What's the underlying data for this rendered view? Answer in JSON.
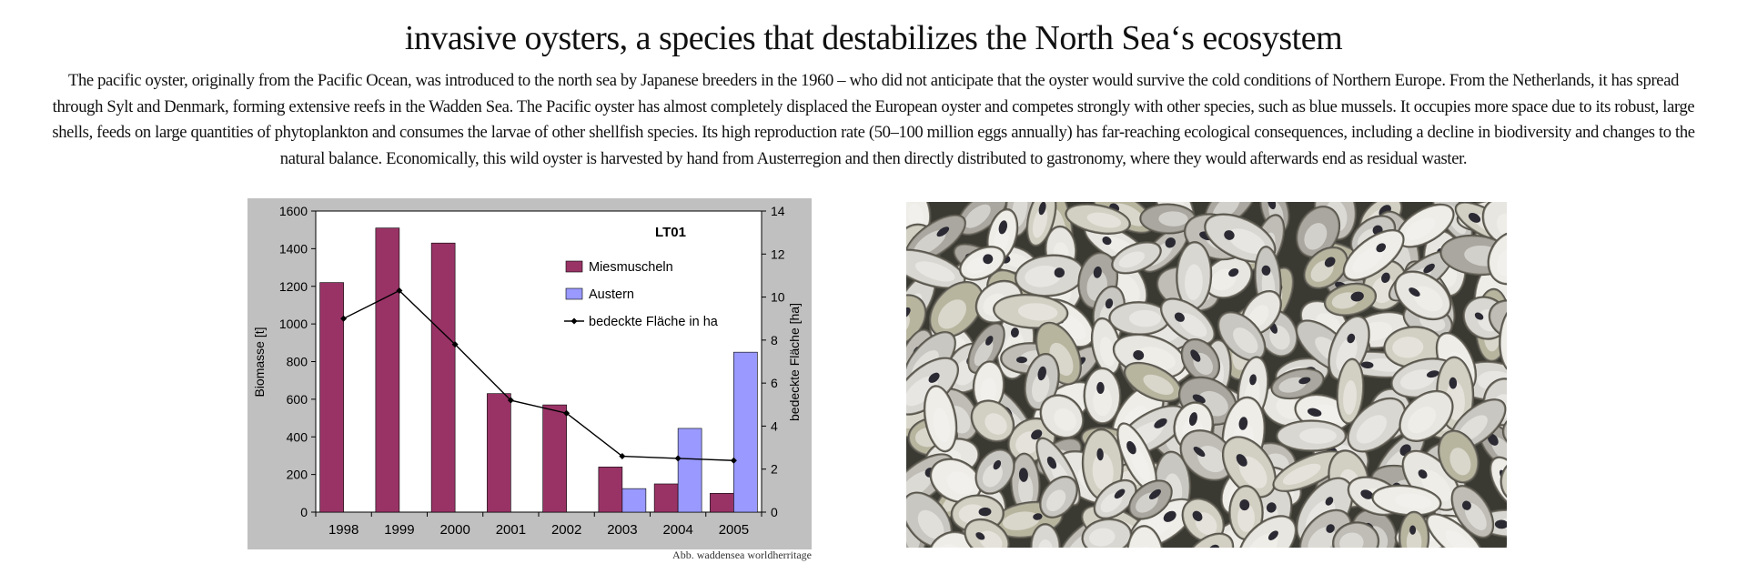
{
  "header": {
    "title": "invasive oysters, a species that destabilizes the North Sea‘s ecosystem",
    "intro": "The pacific oyster, originally from the Pacific Ocean, was introduced to the north sea by Japanese breeders in the 1960 – who did not anticipate that the oyster would survive the cold conditions of Northern Europe.  From the Netherlands, it has spread through Sylt and Denmark, forming extensive reefs in the Wadden Sea. The Pacific oyster has almost completely displaced the European oyster and competes strongly with other species, such as blue mussels. It occupies more space due to its robust, large shells, feeds on large quantities of phytoplankton and consumes the larvae of other shellfish species. Its high reproduction rate (50–100 million eggs annually) has far-reaching ecological consequences, including a decline in biodiversity and changes to the natural balance. Economically, this wild oyster is harvested by hand from Austerregion and then directly distributed to gastronomy, where they would afterwards end as residual waster."
  },
  "chart_data": {
    "type": "bar",
    "title": "LT01",
    "categories": [
      "1998",
      "1999",
      "2000",
      "2001",
      "2002",
      "2003",
      "2004",
      "2005"
    ],
    "series": [
      {
        "name": "Miesmuscheln",
        "kind": "bar",
        "axis": "left",
        "color": "#993366",
        "values": [
          1220,
          1510,
          1430,
          630,
          570,
          240,
          150,
          100
        ]
      },
      {
        "name": "Austern",
        "kind": "bar",
        "axis": "left",
        "color": "#9999ff",
        "values": [
          0,
          0,
          0,
          0,
          0,
          125,
          445,
          850
        ]
      },
      {
        "name": "bedeckte Fläche in ha",
        "kind": "line",
        "axis": "right",
        "color": "#000000",
        "values": [
          9.0,
          10.3,
          7.8,
          5.2,
          4.6,
          2.6,
          2.5,
          2.4
        ]
      }
    ],
    "ylabel": "Biomasse [t]",
    "ylim": [
      0,
      1600
    ],
    "yticks": [
      0,
      200,
      400,
      600,
      800,
      1000,
      1200,
      1400,
      1600
    ],
    "y2label": "bedeckte Fläche [ha]",
    "y2lim": [
      0,
      14
    ],
    "y2ticks": [
      0,
      2,
      4,
      6,
      8,
      10,
      12,
      14
    ],
    "legend_position": "top-right",
    "grid": false,
    "plot_background": "#ffffff",
    "frame_background": "#c0c0c0"
  },
  "caption": "Abb. waddensea worldherritage",
  "photo": {
    "subject": "pile of oyster shells"
  }
}
